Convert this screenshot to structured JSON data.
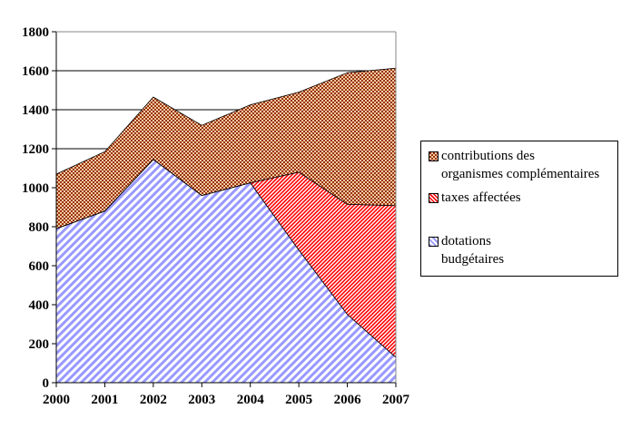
{
  "chart_data": {
    "type": "area",
    "stacked": true,
    "title": "",
    "xlabel": "",
    "ylabel": "",
    "categories": [
      "2000",
      "2001",
      "2002",
      "2003",
      "2004",
      "2005",
      "2006",
      "2007"
    ],
    "ylim": [
      0,
      1800
    ],
    "yticks": [
      0,
      200,
      400,
      600,
      800,
      1000,
      1200,
      1400,
      1600,
      1800
    ],
    "grid": "horizontal",
    "legend_position": "right",
    "series": [
      {
        "name": "dotations budgétaires",
        "values": [
          790,
          880,
          1145,
          960,
          1025,
          680,
          350,
          130
        ],
        "color": "#9999ff",
        "pattern": "diagonal-stripes"
      },
      {
        "name": "taxes affectées",
        "values": [
          0,
          0,
          0,
          0,
          0,
          400,
          565,
          778
        ],
        "color": "#ff0000",
        "pattern": "diagonal-stripes"
      },
      {
        "name": "contributions des organismes complémentaires",
        "values": [
          280,
          305,
          320,
          360,
          400,
          410,
          675,
          705
        ],
        "color": "#993300",
        "pattern": "checker"
      }
    ]
  },
  "legend": [
    {
      "line1": "contributions des",
      "line2": "organismes complémentaires"
    },
    {
      "line1": "taxes affectées",
      "line2": ""
    },
    {
      "line1": "dotations",
      "line2": "budgétaires"
    }
  ]
}
